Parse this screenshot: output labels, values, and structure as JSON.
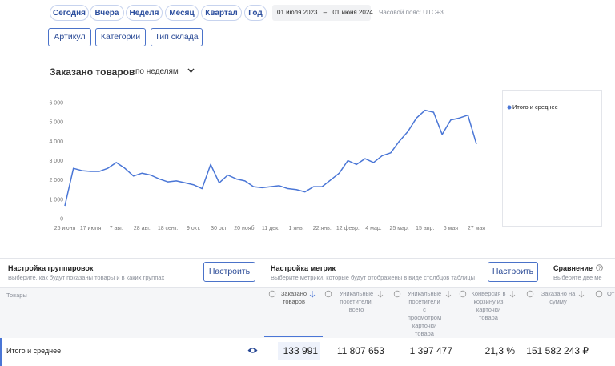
{
  "filters": {
    "periods": [
      "Сегодня",
      "Вчера",
      "Неделя",
      "Месяц",
      "Квартал",
      "Год"
    ],
    "date_from": "01 июля 2023",
    "separator": "–",
    "date_to": "01 июня 2024",
    "timezone": "Часовой пояс: UTC+3",
    "dimensions": [
      "Артикул",
      "Категории",
      "Тип склада"
    ]
  },
  "chart_data": {
    "type": "line",
    "title": "Заказано товаров",
    "period_select": "по неделям",
    "categories": [
      "26 июня",
      null,
      null,
      "17 июля",
      null,
      null,
      "7 авг.",
      null,
      null,
      "28 авг.",
      null,
      null,
      "18 сент.",
      null,
      null,
      "9 окт.",
      null,
      null,
      "30 окт.",
      null,
      null,
      "20 нояб.",
      null,
      null,
      "11 дек.",
      null,
      null,
      "1 янв.",
      null,
      null,
      "22 янв.",
      null,
      null,
      "12 февр.",
      null,
      null,
      "4 мар.",
      null,
      null,
      "25 мар.",
      null,
      null,
      "15 апр.",
      null,
      null,
      "6 мая",
      null,
      null,
      "27 мая"
    ],
    "series": [
      {
        "name": "Итого и среднее",
        "color": "#4a76d6",
        "values": [
          660,
          2600,
          2480,
          2440,
          2440,
          2600,
          2900,
          2600,
          2200,
          2350,
          2250,
          2050,
          1900,
          1950,
          1850,
          1750,
          1550,
          2800,
          1850,
          2250,
          2050,
          1950,
          1650,
          1600,
          1650,
          1700,
          1550,
          1500,
          1380,
          1650,
          1650,
          2000,
          2350,
          3000,
          2800,
          3100,
          2900,
          3250,
          3400,
          4000,
          4500,
          5200,
          5600,
          5500,
          4350,
          5100,
          5200,
          5350,
          3850
        ]
      }
    ],
    "ylim": [
      0,
      6000
    ],
    "yticks": [
      0,
      {
        "value": 1000,
        "label": "1 000"
      },
      {
        "value": 2000,
        "label": "2 000"
      },
      {
        "value": 3000,
        "label": "3 000"
      },
      {
        "value": 4000,
        "label": "4 000"
      },
      {
        "value": 5000,
        "label": "5 000"
      },
      {
        "value": 6000,
        "label": "6 000"
      }
    ],
    "grid": false
  },
  "settings": {
    "grouping": {
      "title": "Настройка группировок",
      "hint": "Выберите, как будут показаны товары и в каких группах",
      "button": "Настроить"
    },
    "metrics": {
      "title": "Настройка метрик",
      "hint": "Выберите метрики, которые будут отображены в виде столбцов таблицы",
      "button": "Настроить"
    },
    "comparison": {
      "title": "Сравнение",
      "hint": "Выберите две ме"
    }
  },
  "table": {
    "columns": [
      "Товары",
      "Заказано товаров",
      "Уникальные посетители, всего",
      "Уникальные посетители с просмотром карточки товара",
      "Конверсия в корзину из карточки товара",
      "Заказано на сумму",
      "От"
    ],
    "rows": [
      [
        "Итого и среднее",
        "133 991",
        "11 807 653",
        "1 397 477",
        "21,3 %",
        "151 582 243 ₽"
      ]
    ]
  }
}
